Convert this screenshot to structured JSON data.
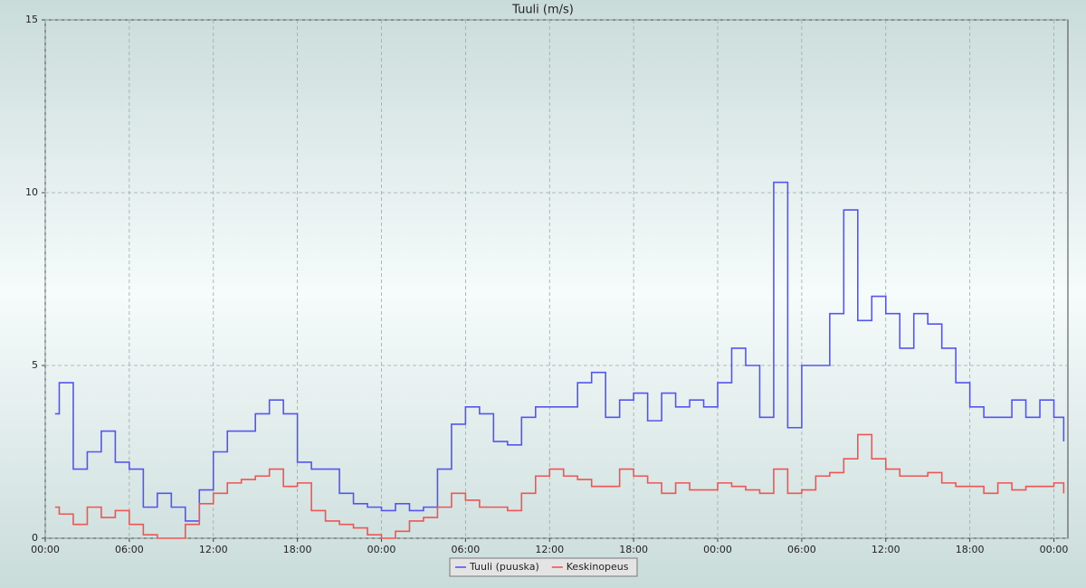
{
  "chart_data": {
    "type": "line",
    "title": "Tuuli (m/s)",
    "step": true,
    "grid": true,
    "legend": "bottom",
    "x": [
      0.7,
      1,
      2,
      3,
      4,
      5,
      6,
      7,
      8,
      9,
      10,
      11,
      12,
      13,
      14,
      15,
      16,
      17,
      18,
      19,
      20,
      21,
      22,
      23,
      24,
      25,
      26,
      27,
      28,
      29,
      30,
      31,
      32,
      33,
      34,
      35,
      36,
      37,
      38,
      39,
      40,
      41,
      42,
      43,
      44,
      45,
      46,
      47,
      48,
      49,
      50,
      51,
      52,
      53,
      54,
      55,
      56,
      57,
      58,
      59,
      60,
      61,
      62,
      63,
      64,
      65,
      66,
      67,
      68,
      69,
      70,
      71,
      72,
      72.7
    ],
    "series": [
      {
        "name": "Tuuli (puuska)",
        "color": "#5555ee",
        "values": [
          3.6,
          4.5,
          2.0,
          2.5,
          3.1,
          2.2,
          2.0,
          0.9,
          1.3,
          0.9,
          0.5,
          1.4,
          2.5,
          3.1,
          3.1,
          3.6,
          4.0,
          3.6,
          2.2,
          2.0,
          2.0,
          1.3,
          1.0,
          0.9,
          0.8,
          1.0,
          0.8,
          0.9,
          2.0,
          3.3,
          3.8,
          3.6,
          2.8,
          2.7,
          3.5,
          3.8,
          3.8,
          3.8,
          4.5,
          4.8,
          3.5,
          4.0,
          4.2,
          3.4,
          4.2,
          3.8,
          4.0,
          3.8,
          4.5,
          5.5,
          5.0,
          3.5,
          10.3,
          3.2,
          5.0,
          5.0,
          6.5,
          9.5,
          6.3,
          7.0,
          6.5,
          5.5,
          6.5,
          6.2,
          5.5,
          4.5,
          3.8,
          3.5,
          3.5,
          4.0,
          3.5,
          4.0,
          3.5,
          2.8
        ]
      },
      {
        "name": "Keskinopeus",
        "color": "#ee5555",
        "values": [
          0.9,
          0.7,
          0.4,
          0.9,
          0.6,
          0.8,
          0.4,
          0.1,
          0,
          0,
          0.4,
          1.0,
          1.3,
          1.6,
          1.7,
          1.8,
          2.0,
          1.5,
          1.6,
          0.8,
          0.5,
          0.4,
          0.3,
          0.1,
          0.0,
          0.2,
          0.5,
          0.6,
          0.9,
          1.3,
          1.1,
          0.9,
          0.9,
          0.8,
          1.3,
          1.8,
          2.0,
          1.8,
          1.7,
          1.5,
          1.5,
          2.0,
          1.8,
          1.6,
          1.3,
          1.6,
          1.4,
          1.4,
          1.6,
          1.5,
          1.4,
          1.3,
          2.0,
          1.3,
          1.4,
          1.8,
          1.9,
          2.3,
          3.0,
          2.3,
          2.0,
          1.8,
          1.8,
          1.9,
          1.6,
          1.5,
          1.5,
          1.3,
          1.6,
          1.4,
          1.5,
          1.5,
          1.6,
          1.3
        ]
      }
    ],
    "xlim": [
      0,
      73
    ],
    "xticks": [
      {
        "value": 0,
        "label": "00:00"
      },
      {
        "value": 6,
        "label": "06:00"
      },
      {
        "value": 12,
        "label": "12:00"
      },
      {
        "value": 18,
        "label": "18:00"
      },
      {
        "value": 24,
        "label": "00:00"
      },
      {
        "value": 30,
        "label": "06:00"
      },
      {
        "value": 36,
        "label": "12:00"
      },
      {
        "value": 42,
        "label": "18:00"
      },
      {
        "value": 48,
        "label": "00:00"
      },
      {
        "value": 54,
        "label": "06:00"
      },
      {
        "value": 60,
        "label": "12:00"
      },
      {
        "value": 66,
        "label": "18:00"
      },
      {
        "value": 72,
        "label": "00:00"
      }
    ],
    "ylim": [
      0,
      15
    ],
    "yticks": [
      0,
      5,
      10,
      15
    ]
  }
}
